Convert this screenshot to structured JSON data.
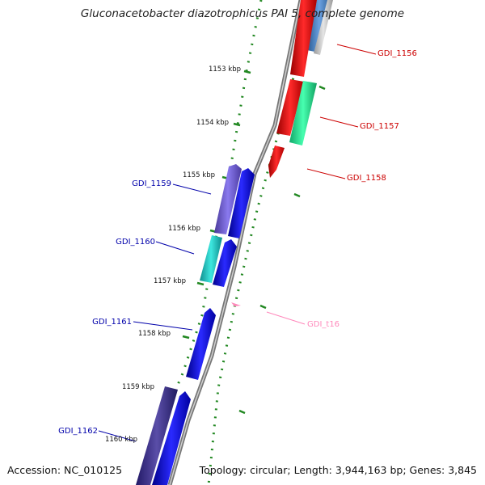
{
  "title": "Gluconacetobacter diazotrophicus PAI 5, complete genome",
  "footer": {
    "accession": "Accession: NC_010125",
    "summary": "Topology: circular; Length: 3,944,163 bp; Genes: 3,845"
  },
  "ticks": [
    "1153 kbp",
    "1154 kbp",
    "1155 kbp",
    "1156 kbp",
    "1157 kbp",
    "1158 kbp",
    "1159 kbp",
    "1160 kbp"
  ],
  "genes": {
    "GDI_1156": "GDI_1156",
    "GDI_1157": "GDI_1157",
    "GDI_1158": "GDI_1158",
    "GDI_1159": "GDI_1159",
    "GDI_1160": "GDI_1160",
    "GDI_1161": "GDI_1161",
    "GDI_1162": "GDI_1162",
    "GDI_t16": "GDI_t16"
  },
  "colors": {
    "forward_label": "#0000aa",
    "reverse_label": "#cc0000",
    "trna_label": "#ff88bb",
    "tick_dots": "#228822"
  }
}
